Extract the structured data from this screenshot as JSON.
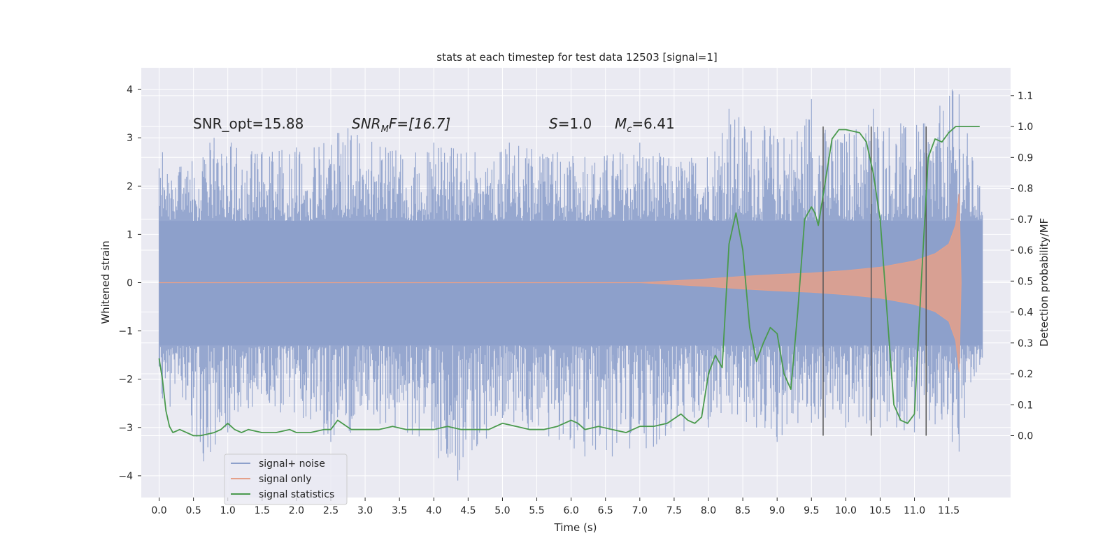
{
  "chart_data": {
    "type": "line",
    "title": "stats at each timestep for test data 12503 [signal=1]",
    "xlabel": "Time (s)",
    "ylabel": "Whitened strain",
    "ylabel_right": "Detection probability/MF",
    "xlim": [
      -0.26,
      12.4
    ],
    "ylim": [
      -4.45,
      4.45
    ],
    "ylim_right": [
      -0.2,
      1.19
    ],
    "x_ticks": [
      "0.0",
      "0.5",
      "1.0",
      "1.5",
      "2.0",
      "2.5",
      "3.0",
      "3.5",
      "4.0",
      "4.5",
      "5.0",
      "5.5",
      "6.0",
      "6.5",
      "7.0",
      "7.5",
      "8.0",
      "8.5",
      "9.0",
      "9.5",
      "10.0",
      "10.5",
      "11.0",
      "11.5"
    ],
    "x_tick_values": [
      0.0,
      0.5,
      1.0,
      1.5,
      2.0,
      2.5,
      3.0,
      3.5,
      4.0,
      4.5,
      5.0,
      5.5,
      6.0,
      6.5,
      7.0,
      7.5,
      8.0,
      8.5,
      9.0,
      9.5,
      10.0,
      10.5,
      11.0,
      11.5
    ],
    "y_ticks": [
      "4",
      "3",
      "2",
      "1",
      "0",
      "−1",
      "−2",
      "−3",
      "−4"
    ],
    "y_tick_values": [
      4,
      3,
      2,
      1,
      0,
      -1,
      -2,
      -3,
      -4
    ],
    "y_right_ticks": [
      "1.1",
      "1.0",
      "0.9",
      "0.8",
      "0.7",
      "0.6",
      "0.5",
      "0.4",
      "0.3",
      "0.2",
      "0.1",
      "0.0"
    ],
    "y_right_tick_values": [
      1.1,
      1.0,
      0.9,
      0.8,
      0.7,
      0.6,
      0.5,
      0.4,
      0.3,
      0.2,
      0.1,
      0.0
    ],
    "grid": true,
    "legend_position": "lower-left",
    "annotations": {
      "snr_opt": "SNR_opt=15.88",
      "snr_mf_base": "SNR",
      "snr_mf_sub": "M",
      "snr_mf_rest": "F=[16.7]",
      "s_var": "S",
      "s_rest": "=1.0",
      "mc_var": "M",
      "mc_sub": "c",
      "mc_rest": "=6.41"
    },
    "series": [
      {
        "name": "signal+ noise",
        "color": "#8da0cb",
        "x_range": [
          0.0,
          11.99
        ],
        "envelope_peaks_upper": [
          [
            0.05,
            2.7
          ],
          [
            0.3,
            2.4
          ],
          [
            0.8,
            3.0
          ],
          [
            1.05,
            2.9
          ],
          [
            1.5,
            2.7
          ],
          [
            2.0,
            2.8
          ],
          [
            2.6,
            3.1
          ],
          [
            2.75,
            3.2
          ],
          [
            3.3,
            2.8
          ],
          [
            4.0,
            2.9
          ],
          [
            4.6,
            2.7
          ],
          [
            5.1,
            2.9
          ],
          [
            5.8,
            2.7
          ],
          [
            6.2,
            2.6
          ],
          [
            7.0,
            2.9
          ],
          [
            7.6,
            2.5
          ],
          [
            8.2,
            3.1
          ],
          [
            8.3,
            3.6
          ],
          [
            8.9,
            3.2
          ],
          [
            9.1,
            3.0
          ],
          [
            9.5,
            3.8
          ],
          [
            9.8,
            3.0
          ],
          [
            10.4,
            3.6
          ],
          [
            10.8,
            3.3
          ],
          [
            11.15,
            3.3
          ],
          [
            11.55,
            4.0
          ],
          [
            11.65,
            3.9
          ],
          [
            11.95,
            2.0
          ]
        ],
        "envelope_peaks_lower": [
          [
            0.05,
            -2.4
          ],
          [
            0.6,
            -3.3
          ],
          [
            0.65,
            -3.7
          ],
          [
            1.0,
            -3.1
          ],
          [
            1.3,
            -2.6
          ],
          [
            2.1,
            -2.8
          ],
          [
            2.5,
            -3.3
          ],
          [
            3.3,
            -2.9
          ],
          [
            4.35,
            -4.1
          ],
          [
            5.0,
            -2.8
          ],
          [
            6.2,
            -3.6
          ],
          [
            6.6,
            -3.6
          ],
          [
            7.2,
            -3.4
          ],
          [
            8.0,
            -3.0
          ],
          [
            8.7,
            -3.0
          ],
          [
            9.0,
            -3.3
          ],
          [
            9.5,
            -2.9
          ],
          [
            10.0,
            -3.0
          ],
          [
            10.5,
            -3.0
          ],
          [
            11.0,
            -3.1
          ],
          [
            11.55,
            -3.3
          ],
          [
            11.65,
            -3.5
          ],
          [
            11.95,
            -1.7
          ]
        ]
      },
      {
        "name": "signal only",
        "color": "#e5a08a",
        "amplitude_envelope": [
          [
            0.0,
            0.0
          ],
          [
            7.0,
            0.0
          ],
          [
            7.5,
            0.04
          ],
          [
            8.0,
            0.08
          ],
          [
            8.5,
            0.13
          ],
          [
            9.0,
            0.17
          ],
          [
            9.5,
            0.2
          ],
          [
            10.0,
            0.25
          ],
          [
            10.5,
            0.32
          ],
          [
            11.0,
            0.45
          ],
          [
            11.3,
            0.6
          ],
          [
            11.5,
            0.8
          ],
          [
            11.6,
            1.2
          ],
          [
            11.65,
            1.85
          ],
          [
            11.68,
            0.0
          ]
        ]
      },
      {
        "name": "signal statistics",
        "color": "#4a9a4d",
        "axis": "right",
        "x": [
          0.0,
          0.05,
          0.1,
          0.15,
          0.2,
          0.3,
          0.4,
          0.5,
          0.6,
          0.8,
          0.9,
          1.0,
          1.1,
          1.2,
          1.3,
          1.5,
          1.7,
          1.9,
          2.0,
          2.2,
          2.4,
          2.5,
          2.6,
          2.8,
          3.0,
          3.2,
          3.4,
          3.6,
          3.8,
          4.0,
          4.2,
          4.4,
          4.6,
          4.8,
          5.0,
          5.2,
          5.4,
          5.6,
          5.8,
          6.0,
          6.1,
          6.2,
          6.4,
          6.6,
          6.8,
          7.0,
          7.2,
          7.4,
          7.6,
          7.7,
          7.8,
          7.9,
          8.0,
          8.1,
          8.2,
          8.3,
          8.4,
          8.5,
          8.6,
          8.7,
          8.8,
          8.9,
          9.0,
          9.1,
          9.2,
          9.3,
          9.4,
          9.5,
          9.55,
          9.6,
          9.7,
          9.8,
          9.9,
          10.0,
          10.2,
          10.3,
          10.4,
          10.5,
          10.6,
          10.7,
          10.8,
          10.9,
          11.0,
          11.1,
          11.2,
          11.3,
          11.4,
          11.5,
          11.6,
          11.7,
          11.8,
          11.9,
          11.95
        ],
        "values": [
          0.25,
          0.18,
          0.08,
          0.03,
          0.01,
          0.02,
          0.01,
          0.0,
          0.0,
          0.01,
          0.02,
          0.04,
          0.02,
          0.01,
          0.02,
          0.01,
          0.01,
          0.02,
          0.01,
          0.01,
          0.02,
          0.02,
          0.05,
          0.02,
          0.02,
          0.02,
          0.03,
          0.02,
          0.02,
          0.02,
          0.03,
          0.02,
          0.02,
          0.02,
          0.04,
          0.03,
          0.02,
          0.02,
          0.03,
          0.05,
          0.04,
          0.02,
          0.03,
          0.02,
          0.01,
          0.03,
          0.03,
          0.04,
          0.07,
          0.05,
          0.04,
          0.06,
          0.2,
          0.26,
          0.22,
          0.62,
          0.72,
          0.6,
          0.35,
          0.24,
          0.3,
          0.35,
          0.33,
          0.2,
          0.15,
          0.4,
          0.7,
          0.74,
          0.72,
          0.68,
          0.82,
          0.96,
          0.99,
          0.99,
          0.98,
          0.95,
          0.85,
          0.7,
          0.4,
          0.1,
          0.05,
          0.04,
          0.07,
          0.5,
          0.9,
          0.96,
          0.95,
          0.98,
          1.0,
          1.0,
          1.0,
          1.0,
          1.0
        ]
      }
    ],
    "vertical_lines": [
      9.67,
      10.37,
      11.17
    ]
  }
}
